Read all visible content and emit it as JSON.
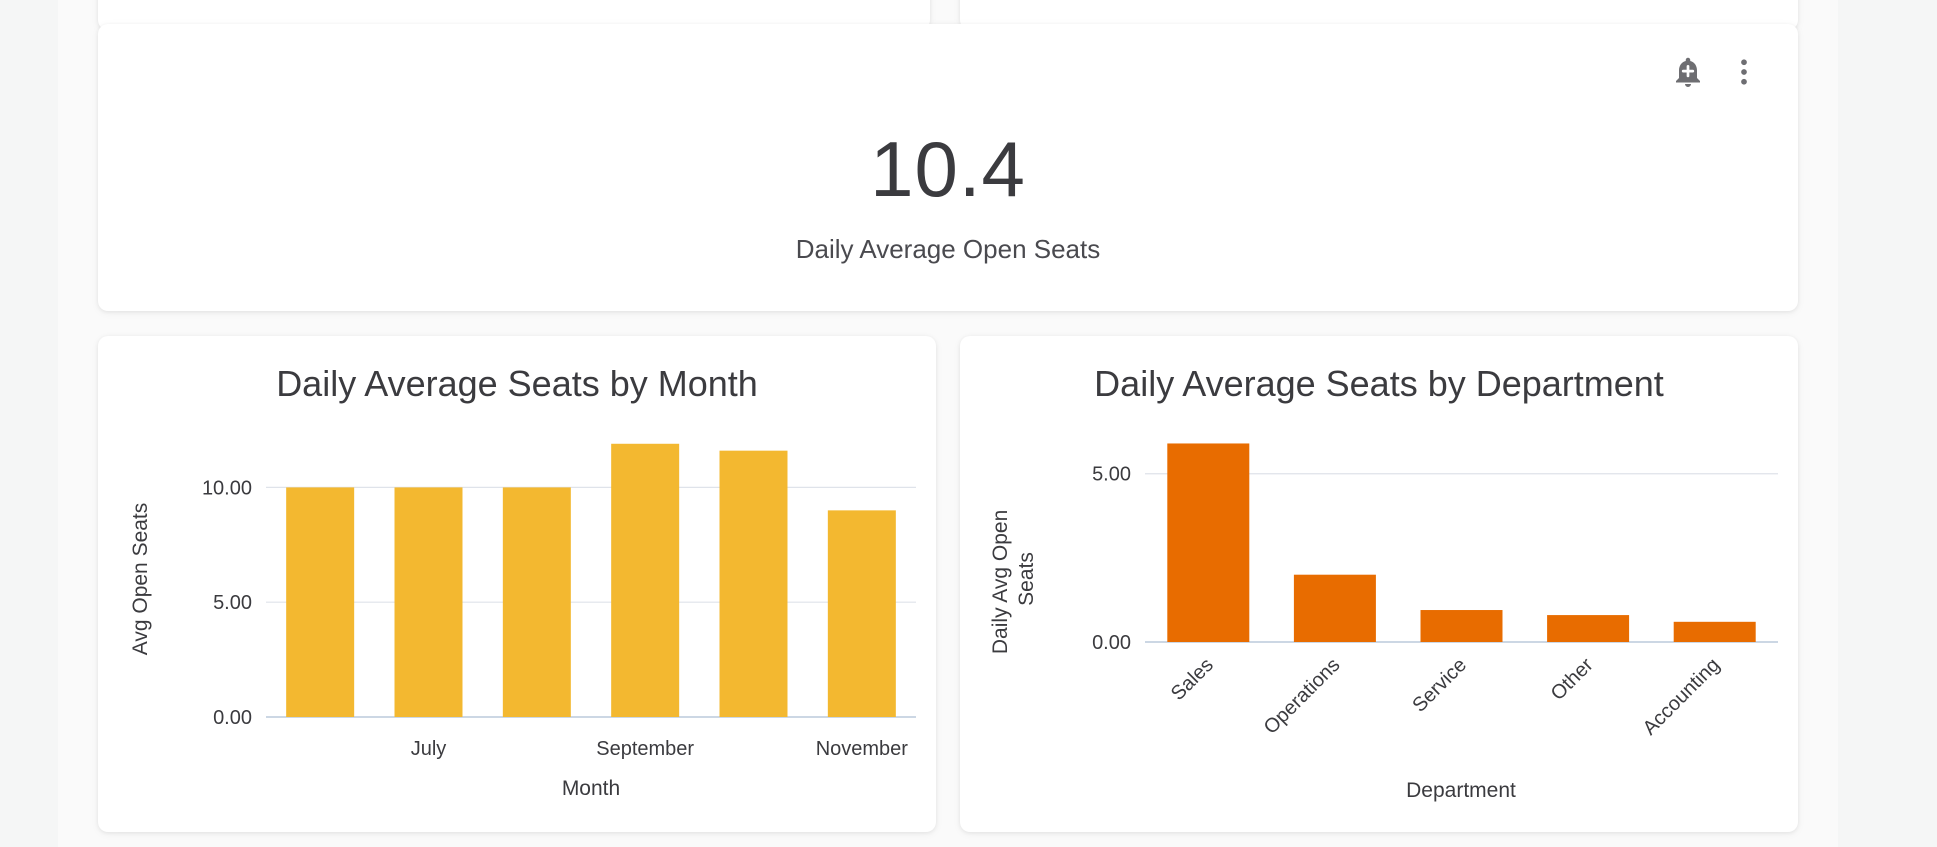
{
  "kpi": {
    "value": "10.4",
    "label": "Daily Average Open Seats"
  },
  "icons": {
    "add_alert": "bell-plus-icon",
    "more": "more-vertical-icon"
  },
  "colors": {
    "month_bars": "#f3b830",
    "department_bars": "#e86c00",
    "grid": "#dfe3ea",
    "axis": "#bccadb"
  },
  "chart_data": [
    {
      "type": "bar",
      "title": "Daily Average Seats by Month",
      "xlabel": "Month",
      "ylabel": "Avg Open Seats",
      "categories": [
        "",
        "July",
        "",
        "September",
        "",
        "November"
      ],
      "values": [
        10.0,
        10.0,
        10.0,
        11.9,
        11.6,
        9.0
      ],
      "ylim": [
        0,
        12.5
      ],
      "yticks": [
        "0.00",
        "5.00",
        "10.00"
      ],
      "ytick_values": [
        0,
        5,
        10
      ],
      "grid": true,
      "legend": "none"
    },
    {
      "type": "bar",
      "title": "Daily Average Seats by Department",
      "xlabel": "Department",
      "ylabel": "Daily Avg Open Seats",
      "categories": [
        "Sales",
        "Operations",
        "Service",
        "Other",
        "Accounting"
      ],
      "values": [
        5.9,
        2.0,
        0.95,
        0.8,
        0.6
      ],
      "ylim": [
        0,
        6.3
      ],
      "yticks": [
        "0.00",
        "5.00"
      ],
      "ytick_values": [
        0,
        5
      ],
      "grid": true,
      "legend": "none"
    }
  ]
}
